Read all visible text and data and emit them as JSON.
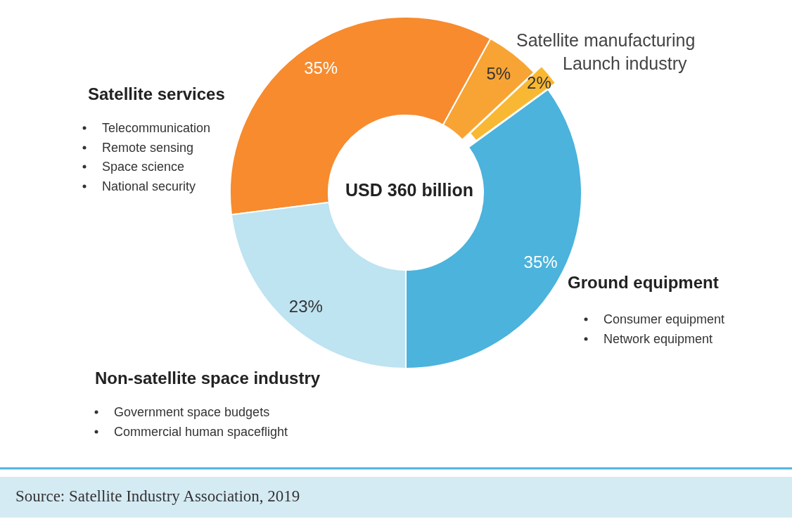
{
  "chart_data": {
    "type": "donut",
    "categories": [
      "Satellite services",
      "Satellite manufacturing",
      "Launch industry",
      "Ground equipment",
      "Non-satellite space industry"
    ],
    "values": [
      35,
      5,
      2,
      35,
      23
    ],
    "colors": [
      "#f78b2e",
      "#f8a434",
      "#f9b833",
      "#4bb3dc",
      "#bee3f1"
    ],
    "value_labels": [
      "35%",
      "5%",
      "2%",
      "35%",
      "23%"
    ],
    "annotations": [
      "USD 360 billion",
      "Telecommunication",
      "Remote sensing",
      "Space science",
      "National security",
      "Consumer equipment",
      "Network equipment",
      "Government space budgets",
      "Commercial human spaceflight",
      "Source: Satellite Industry Association, 2019"
    ]
  }
}
